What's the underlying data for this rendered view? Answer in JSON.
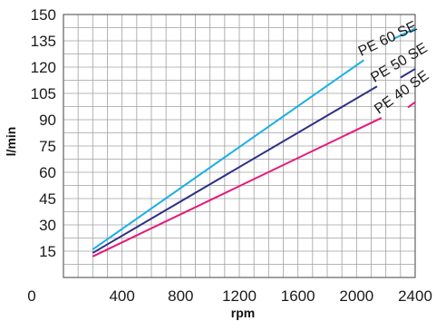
{
  "chart_data": {
    "type": "line",
    "xlabel": "rpm",
    "ylabel": "l/min",
    "xlim": [
      0,
      2400
    ],
    "ylim": [
      0,
      150
    ],
    "x_ticks": [
      {
        "value": 400,
        "label": "400"
      },
      {
        "value": 800,
        "label": "800"
      },
      {
        "value": 1200,
        "label": "1200"
      },
      {
        "value": 1600,
        "label": "1600"
      },
      {
        "value": 2000,
        "label": "2000"
      },
      {
        "value": 2400,
        "label": "2400"
      }
    ],
    "origin_label": "0",
    "y_ticks": [
      {
        "value": 15,
        "label": "15"
      },
      {
        "value": 30,
        "label": "30"
      },
      {
        "value": 45,
        "label": "45"
      },
      {
        "value": 60,
        "label": "60"
      },
      {
        "value": 75,
        "label": "75"
      },
      {
        "value": 90,
        "label": "90"
      },
      {
        "value": 105,
        "label": "105"
      },
      {
        "value": 120,
        "label": "120"
      },
      {
        "value": 135,
        "label": "135"
      },
      {
        "value": 150,
        "label": "150"
      }
    ],
    "grid": true,
    "series": [
      {
        "name": "PE 60 SE",
        "color": "#1aafe6",
        "points": [
          [
            200,
            16
          ],
          [
            2050,
            124
          ]
        ],
        "tail": [
          [
            2250,
            136
          ],
          [
            2400,
            142
          ]
        ]
      },
      {
        "name": "PE 50 SE",
        "color": "#2e2f86",
        "points": [
          [
            200,
            14
          ],
          [
            2140,
            109
          ]
        ],
        "tail": [
          [
            2300,
            114
          ],
          [
            2400,
            119
          ]
        ]
      },
      {
        "name": "PE 40 SE",
        "color": "#e6187a",
        "points": [
          [
            200,
            12
          ],
          [
            2170,
            91
          ]
        ],
        "tail": [
          [
            2350,
            97
          ],
          [
            2400,
            100
          ]
        ]
      }
    ]
  }
}
